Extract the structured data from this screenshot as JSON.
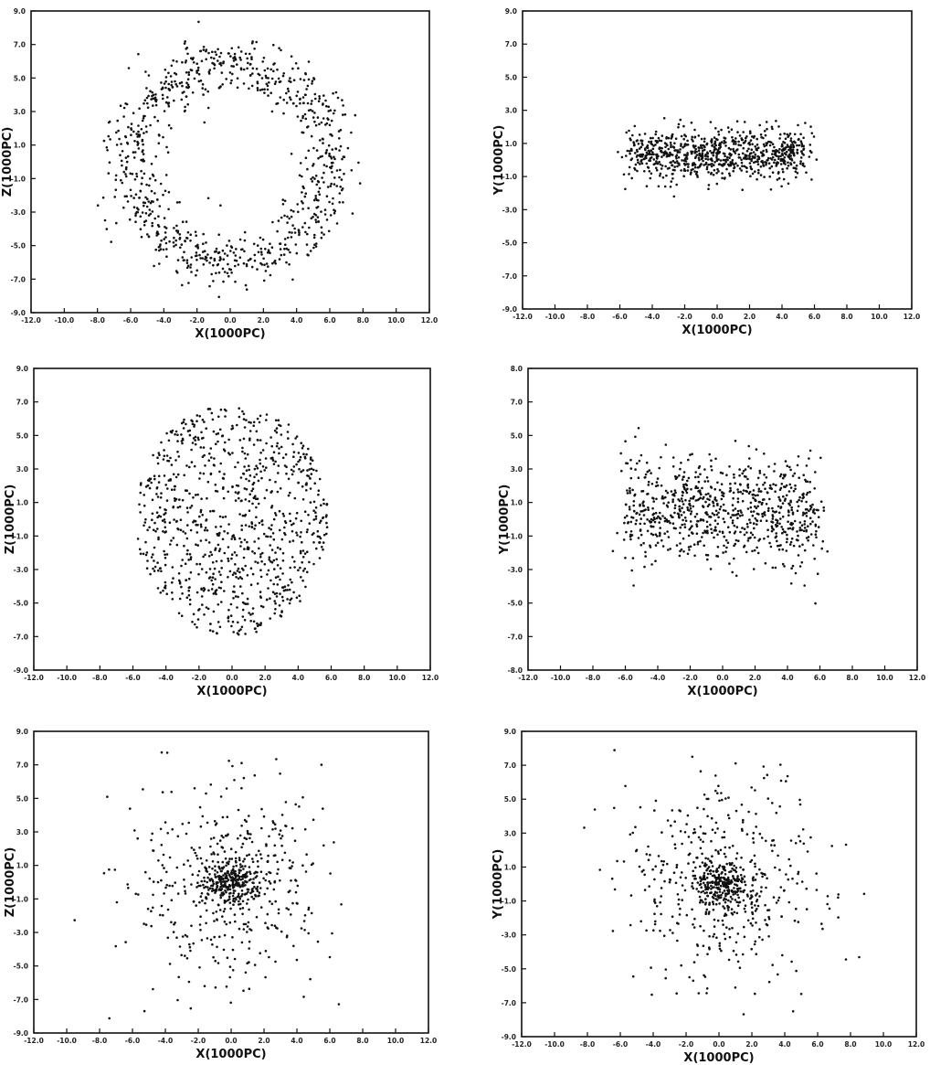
{
  "chart_data": [
    {
      "type": "scatter",
      "panel": "top-left",
      "xlabel": "X(1000PC)",
      "ylabel": "Z(1000PC)",
      "xlim": [
        -12,
        12
      ],
      "ylim": [
        -9,
        9
      ],
      "xticks": [
        "-12.0",
        "-10.0",
        "-8.0",
        "-6.0",
        "-4.0",
        "-2.0",
        "0.0",
        "2.0",
        "4.0",
        "6.0",
        "8.0",
        "10.0",
        "12.0"
      ],
      "yticks": [
        "-9.0",
        "-7.0",
        "-5.0",
        "-3.0",
        "-1.0",
        "1.0",
        "3.0",
        "5.0",
        "7.0",
        "9.0"
      ],
      "distribution": {
        "shape": "ring",
        "cx": 0,
        "cy": 0,
        "r": 6.0,
        "width": 1.5,
        "sx": 1,
        "sy": 1,
        "n": 900
      }
    },
    {
      "type": "scatter",
      "panel": "top-right",
      "xlabel": "X(1000PC)",
      "ylabel": "Y(1000PC)",
      "xlim": [
        -12,
        12
      ],
      "ylim": [
        -9,
        9
      ],
      "xticks": [
        "-12.0",
        "-10.0",
        "-8.0",
        "-6.0",
        "-4.0",
        "-2.0",
        "0.0",
        "2.0",
        "4.0",
        "6.0",
        "8.0",
        "10.0",
        "12.0"
      ],
      "yticks": [
        "-9.0",
        "-7.0",
        "-5.0",
        "-3.0",
        "-1.0",
        "1.0",
        "3.0",
        "5.0",
        "7.0",
        "9.0"
      ],
      "distribution": {
        "shape": "band",
        "cx": 0,
        "cy": 0.3,
        "halfwidth": 5.5,
        "sy": 0.8,
        "n": 800
      }
    },
    {
      "type": "scatter",
      "panel": "middle-left",
      "xlabel": "X(1000PC)",
      "ylabel": "Z(1000PC)",
      "xlim": [
        -12,
        12
      ],
      "ylim": [
        -9,
        9
      ],
      "xticks": [
        "-12.0",
        "-10.0",
        "-8.0",
        "-6.0",
        "-4.0",
        "-2.0",
        "0.0",
        "2.0",
        "4.0",
        "6.0",
        "8.0",
        "10.0",
        "12.0"
      ],
      "yticks": [
        "-9.0",
        "-7.0",
        "-5.0",
        "-3.0",
        "-1.0",
        "1.0",
        "3.0",
        "5.0",
        "7.0",
        "9.0"
      ],
      "distribution": {
        "shape": "disk",
        "cx": 0,
        "cy": 0,
        "rx": 5.8,
        "ry": 7.0,
        "n": 900
      }
    },
    {
      "type": "scatter",
      "panel": "middle-right",
      "xlabel": "X(1000PC)",
      "ylabel": "Y(1000PC)",
      "xlim": [
        -12,
        12
      ],
      "ylim": [
        -9,
        9
      ],
      "xticks": [
        "-12.0",
        "-10.0",
        "-8.0",
        "-6.0",
        "-4.0",
        "-2.0",
        "0.0",
        "2.0",
        "4.0",
        "6.0",
        "8.0",
        "10.0",
        "12.0"
      ],
      "yticks": [
        "-8.0",
        "-7.0",
        "-5.0",
        "-3.0",
        "-1.0",
        "1.0",
        "3.0",
        "5.0",
        "7.0",
        "8.0"
      ],
      "distribution": {
        "shape": "band",
        "cx": 0,
        "cy": 0.5,
        "halfwidth": 6.0,
        "sy": 1.6,
        "n": 800
      }
    },
    {
      "type": "scatter",
      "panel": "bottom-left",
      "xlabel": "X(1000PC)",
      "ylabel": "Z(1000PC)",
      "xlim": [
        -12,
        12
      ],
      "ylim": [
        -9,
        9
      ],
      "xticks": [
        "-12.0",
        "-10.0",
        "-8.0",
        "-6.0",
        "-4.0",
        "-2.0",
        "0.0",
        "2.0",
        "4.0",
        "6.0",
        "8.0",
        "10.0",
        "12.0"
      ],
      "yticks": [
        "-9.0",
        "-7.0",
        "-5.0",
        "-3.0",
        "-1.0",
        "1.0",
        "3.0",
        "5.0",
        "7.0",
        "9.0"
      ],
      "distribution": {
        "shape": "core-halo",
        "cx": 0,
        "cy": 0,
        "core": 0.8,
        "halo": 3.0,
        "n": 700
      }
    },
    {
      "type": "scatter",
      "panel": "bottom-right",
      "xlabel": "X(1000PC)",
      "ylabel": "Y(1000PC)",
      "xlim": [
        -12,
        12
      ],
      "ylim": [
        -9,
        9
      ],
      "xticks": [
        "-12.0",
        "-10.0",
        "-8.0",
        "-6.0",
        "-4.0",
        "-2.0",
        "0.0",
        "2.0",
        "4.0",
        "6.0",
        "8.0",
        "10.0",
        "12.0"
      ],
      "yticks": [
        "-9.0",
        "-7.0",
        "-5.0",
        "-3.0",
        "-1.0",
        "1.0",
        "3.0",
        "5.0",
        "7.0",
        "9.0"
      ],
      "distribution": {
        "shape": "core-halo",
        "cx": 0.2,
        "cy": 0,
        "core": 0.8,
        "halo": 3.0,
        "n": 700
      }
    }
  ]
}
